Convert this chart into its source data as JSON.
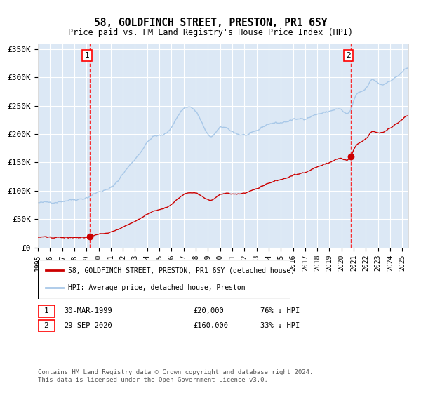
{
  "title": "58, GOLDFINCH STREET, PRESTON, PR1 6SY",
  "subtitle": "Price paid vs. HM Land Registry's House Price Index (HPI)",
  "hpi_color": "#a8c8e8",
  "price_color": "#cc0000",
  "bg_color": "#dce8f5",
  "annotation1_date": 1999.25,
  "annotation1_price": 20000,
  "annotation2_date": 2020.75,
  "annotation2_price": 160000,
  "legend1": "58, GOLDFINCH STREET, PRESTON, PR1 6SY (detached house)",
  "legend2": "HPI: Average price, detached house, Preston",
  "table_row1": "30-MAR-1999    £20,000    76% ↓ HPI",
  "table_row2": "29-SEP-2020    £160,000    33% ↓ HPI",
  "footnote": "Contains HM Land Registry data © Crown copyright and database right 2024.\nThis data is licensed under the Open Government Licence v3.0.",
  "ylim": [
    0,
    360000
  ],
  "xlim_start": 1995.0,
  "xlim_end": 2025.5
}
